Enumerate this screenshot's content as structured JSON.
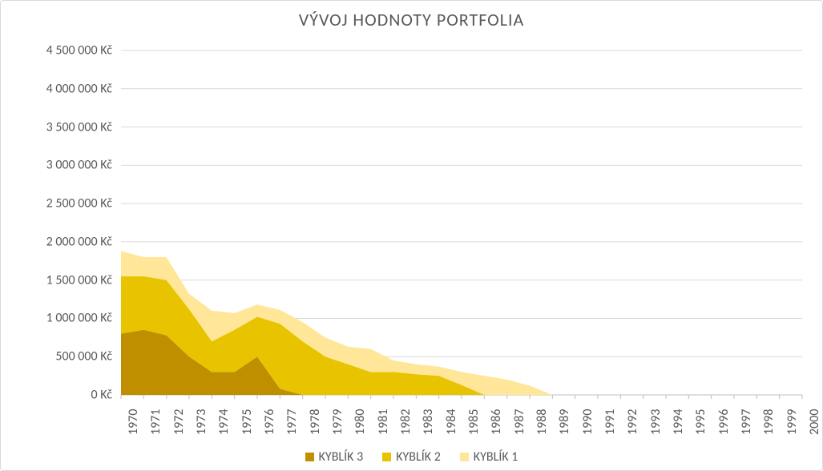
{
  "chart": {
    "type": "area",
    "title": "VÝVOJ HODNOTY PORTFOLIA",
    "title_fontsize": 22,
    "title_color": "#595959",
    "background_color": "#ffffff",
    "frame_border_color": "#d9d9d9",
    "grid_color": "#d9d9d9",
    "axis_line_color": "#bfbfbf",
    "tick_font_color": "#595959",
    "tick_fontsize": 16,
    "x": {
      "categories": [
        "1970",
        "1971",
        "1972",
        "1973",
        "1974",
        "1975",
        "1976",
        "1977",
        "1978",
        "1979",
        "1980",
        "1981",
        "1982",
        "1983",
        "1984",
        "1985",
        "1986",
        "1987",
        "1988",
        "1989",
        "1990",
        "1991",
        "1992",
        "1993",
        "1994",
        "1995",
        "1996",
        "1997",
        "1998",
        "1999",
        "2000"
      ],
      "rotation_deg": -90
    },
    "y": {
      "min": 0,
      "max": 4500000,
      "tick_step": 500000,
      "tick_labels": [
        "0 Kč",
        "500 000 Kč",
        "1 000 000 Kč",
        "1 500 000 Kč",
        "2 000 000 Kč",
        "2 500 000 Kč",
        "3 000 000 Kč",
        "3 500 000 Kč",
        "4 000 000 Kč",
        "4 500 000 Kč"
      ]
    },
    "series": [
      {
        "name": "KYBLÍK 3",
        "color": "#bf8f00",
        "values": [
          800000,
          850000,
          780000,
          500000,
          300000,
          300000,
          500000,
          80000,
          0,
          0,
          0,
          0,
          0,
          0,
          0,
          0,
          0,
          0,
          0,
          0,
          0,
          0,
          0,
          0,
          0,
          0,
          0,
          0,
          0,
          0,
          0
        ]
      },
      {
        "name": "KYBLÍK 2",
        "color": "#e8c400",
        "values": [
          750000,
          700000,
          720000,
          620000,
          400000,
          550000,
          520000,
          850000,
          700000,
          500000,
          400000,
          300000,
          300000,
          270000,
          250000,
          130000,
          0,
          0,
          0,
          0,
          0,
          0,
          0,
          0,
          0,
          0,
          0,
          0,
          0,
          0,
          0
        ]
      },
      {
        "name": "KYBLÍK 1",
        "color": "#ffe699",
        "values": [
          330000,
          250000,
          300000,
          200000,
          400000,
          220000,
          160000,
          180000,
          250000,
          250000,
          230000,
          300000,
          150000,
          130000,
          120000,
          170000,
          250000,
          200000,
          120000,
          0,
          0,
          0,
          0,
          0,
          0,
          0,
          0,
          0,
          0,
          0,
          0
        ]
      }
    ],
    "legend": {
      "position": "bottom",
      "items": [
        {
          "label": "KYBLÍK 3",
          "color": "#bf8f00"
        },
        {
          "label": "KYBLÍK 2",
          "color": "#e8c400"
        },
        {
          "label": "KYBLÍK 1",
          "color": "#ffe699"
        }
      ]
    }
  }
}
